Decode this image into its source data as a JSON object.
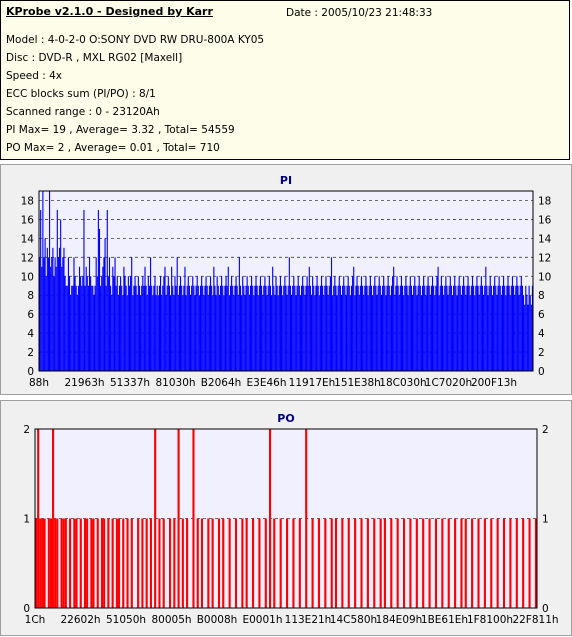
{
  "header": {
    "title": "KProbe v2.1.0 - Designed by Karr",
    "date": "Date : 2005/10/23 21:48:33",
    "lines": [
      "Model : 4-0-2-0 O:SONY    DVD RW DRU-800A  KY05",
      "Disc : DVD-R , MXL RG02 [Maxell]",
      "Speed : 4x",
      "ECC blocks sum (PI/PO) : 8/1",
      "Scanned range : 0 - 23120Ah",
      "PI Max= 19 , Average= 3.32 , Total= 54559",
      "PO Max= 2 , Average= 0.01 , Total= 710"
    ]
  },
  "colors": {
    "pi_bar": "#0000ff",
    "po_bar": "#ff0000",
    "plot_bg": "#f0f0ff",
    "title": "#000080"
  },
  "chart_data": [
    {
      "type": "bar",
      "title": "PI",
      "ylim": [
        0,
        19
      ],
      "yticks": [
        0,
        2,
        4,
        6,
        8,
        10,
        12,
        14,
        16,
        18
      ],
      "xticks": [
        "88h",
        "21963h",
        "51337h",
        "81030h",
        "B2064h",
        "E3E46h",
        "11917Eh",
        "151E38h",
        "18C030h",
        "1C7020h",
        "200F13h"
      ],
      "grid": true,
      "series": [
        {
          "values": [
            12,
            17,
            11,
            19,
            12,
            14,
            10,
            13,
            12,
            19,
            11,
            12,
            13,
            10,
            12,
            11,
            17,
            12,
            13,
            16,
            11,
            12,
            13,
            10,
            9,
            9,
            12,
            10,
            8,
            9,
            9,
            12,
            10,
            9,
            8,
            9,
            11,
            10,
            9,
            10,
            17,
            9,
            11,
            10,
            9,
            12,
            10,
            9,
            9,
            8,
            9,
            12,
            10,
            17,
            15,
            9,
            10,
            11,
            12,
            14,
            9,
            17,
            10,
            12,
            9,
            8,
            11,
            10,
            12,
            9,
            10,
            8,
            9,
            10,
            9,
            8,
            11,
            10,
            9,
            8,
            10,
            9,
            10,
            12,
            8,
            9,
            10,
            9,
            8,
            10,
            9,
            8,
            9,
            10,
            9,
            11,
            9,
            8,
            10,
            9,
            12,
            9,
            8,
            9,
            10,
            8,
            9,
            8,
            9,
            10,
            8,
            9,
            10,
            11,
            8,
            9,
            10,
            9,
            8,
            11,
            9,
            8,
            10,
            9,
            12,
            8,
            9,
            10,
            9,
            8,
            9,
            11,
            8,
            9,
            10,
            9,
            8,
            9,
            10,
            9,
            8,
            9,
            10,
            9,
            8,
            9,
            10,
            9,
            8,
            9,
            10,
            9,
            8,
            9,
            10,
            9,
            8,
            11,
            9,
            8,
            10,
            9,
            8,
            9,
            10,
            9,
            8,
            9,
            10,
            9,
            11,
            8,
            9,
            10,
            9,
            8,
            9,
            10,
            9,
            8,
            12,
            9,
            8,
            10,
            9,
            8,
            9,
            10,
            9,
            8,
            9,
            10,
            9,
            8,
            9,
            10,
            9,
            8,
            9,
            10,
            9,
            8,
            9,
            10,
            9,
            8,
            9,
            10,
            9,
            8,
            11,
            9,
            8,
            10,
            9,
            8,
            9,
            10,
            9,
            8,
            9,
            10,
            9,
            8,
            9,
            12,
            9,
            8,
            9,
            10,
            9,
            8,
            9,
            10,
            9,
            8,
            9,
            10,
            9,
            8,
            9,
            10,
            9,
            11,
            9,
            8,
            10,
            9,
            8,
            9,
            10,
            9,
            8,
            9,
            10,
            9,
            8,
            9,
            10,
            9,
            8,
            9,
            10,
            12,
            8,
            9,
            10,
            9,
            8,
            9,
            10,
            9,
            8,
            9,
            10,
            9,
            8,
            9,
            10,
            9,
            8,
            9,
            10,
            11,
            8,
            9,
            10,
            9,
            8,
            9,
            10,
            9,
            8,
            9,
            10,
            9,
            8,
            9,
            10,
            9,
            8,
            9,
            10,
            9,
            8,
            9,
            10,
            9,
            8,
            9,
            10,
            9,
            8,
            9,
            10,
            9,
            8,
            9,
            10,
            11,
            8,
            9,
            10,
            9,
            8,
            9,
            10,
            9,
            8,
            9,
            10,
            9,
            8,
            9,
            10,
            9,
            8,
            9,
            10,
            9,
            8,
            9,
            10,
            9,
            8,
            9,
            10,
            9,
            8,
            9,
            10,
            9,
            8,
            9,
            10,
            9,
            8,
            9,
            10,
            11,
            8,
            9,
            10,
            9,
            8,
            9,
            10,
            9,
            8,
            9,
            10,
            9,
            8,
            9,
            10,
            9,
            8,
            9,
            10,
            9,
            8,
            9,
            10,
            9,
            8,
            9,
            10,
            9,
            8,
            9,
            10,
            9,
            8,
            9,
            10,
            9,
            8,
            9,
            10,
            9,
            8,
            9,
            11,
            9,
            8,
            9,
            10,
            9,
            8,
            9,
            10,
            9,
            8,
            9,
            10,
            9,
            8,
            9,
            10,
            9,
            8,
            9,
            10,
            9,
            8,
            9,
            10,
            9,
            8,
            9,
            10,
            9,
            8,
            9,
            10,
            9,
            8,
            7,
            9,
            8,
            7,
            9,
            8,
            7,
            9
          ]
        }
      ]
    },
    {
      "type": "bar",
      "title": "PO",
      "ylim": [
        0,
        2
      ],
      "yticks": [
        0,
        1,
        2
      ],
      "xticks": [
        "1Ch",
        "22602h",
        "51050h",
        "80005h",
        "B0008h",
        "E0001h",
        "113E21h",
        "14C580h",
        "184E09h",
        "1BE61Eh",
        "1F8100h",
        "22F811h"
      ],
      "grid": true,
      "series": [
        {
          "values": [
            1,
            2,
            1,
            1,
            1,
            0,
            1,
            1,
            2,
            1,
            1,
            0,
            1,
            1,
            1,
            0,
            1,
            0,
            1,
            1,
            0,
            1,
            0,
            1,
            1,
            0,
            1,
            1,
            0,
            1,
            0,
            1,
            1,
            0,
            1,
            0,
            1,
            0,
            1,
            1,
            0,
            1,
            0,
            1,
            0,
            1,
            0,
            0,
            1,
            0,
            1,
            0,
            1,
            0,
            1,
            0,
            2,
            0,
            1,
            0,
            1,
            0,
            0,
            1,
            0,
            1,
            0,
            2,
            0,
            1,
            0,
            1,
            0,
            0,
            2,
            0,
            1,
            0,
            1,
            0,
            0,
            1,
            0,
            1,
            0,
            0,
            1,
            0,
            1,
            0,
            0,
            1,
            0,
            0,
            1,
            0,
            0,
            1,
            0,
            1,
            0,
            0,
            1,
            0,
            0,
            1,
            0,
            0,
            1,
            0,
            2,
            0,
            1,
            0,
            0,
            1,
            0,
            0,
            1,
            0,
            0,
            1,
            0,
            0,
            1,
            0,
            0,
            2,
            0,
            0,
            1,
            0,
            0,
            1,
            0,
            0,
            1,
            0,
            0,
            1,
            0,
            1,
            0,
            0,
            1,
            0,
            0,
            1,
            0,
            0,
            1,
            0,
            0,
            1,
            0,
            0,
            1,
            0,
            0,
            1,
            0,
            0,
            1,
            0,
            1,
            0,
            0,
            1,
            0,
            0,
            1,
            0,
            0,
            1,
            0,
            0,
            1,
            0,
            0,
            1,
            0,
            0,
            1,
            0,
            0,
            1,
            0,
            0,
            1,
            0,
            0,
            1,
            0,
            0,
            1,
            0,
            0,
            1,
            0,
            0,
            1,
            0,
            1,
            0,
            0,
            1,
            0,
            0,
            1,
            0,
            0,
            1,
            0,
            0,
            1,
            0,
            0,
            1,
            0,
            0,
            1,
            0,
            0,
            1,
            0,
            0,
            1,
            0,
            0,
            1,
            0,
            0,
            1,
            0,
            0,
            1
          ]
        }
      ]
    }
  ]
}
